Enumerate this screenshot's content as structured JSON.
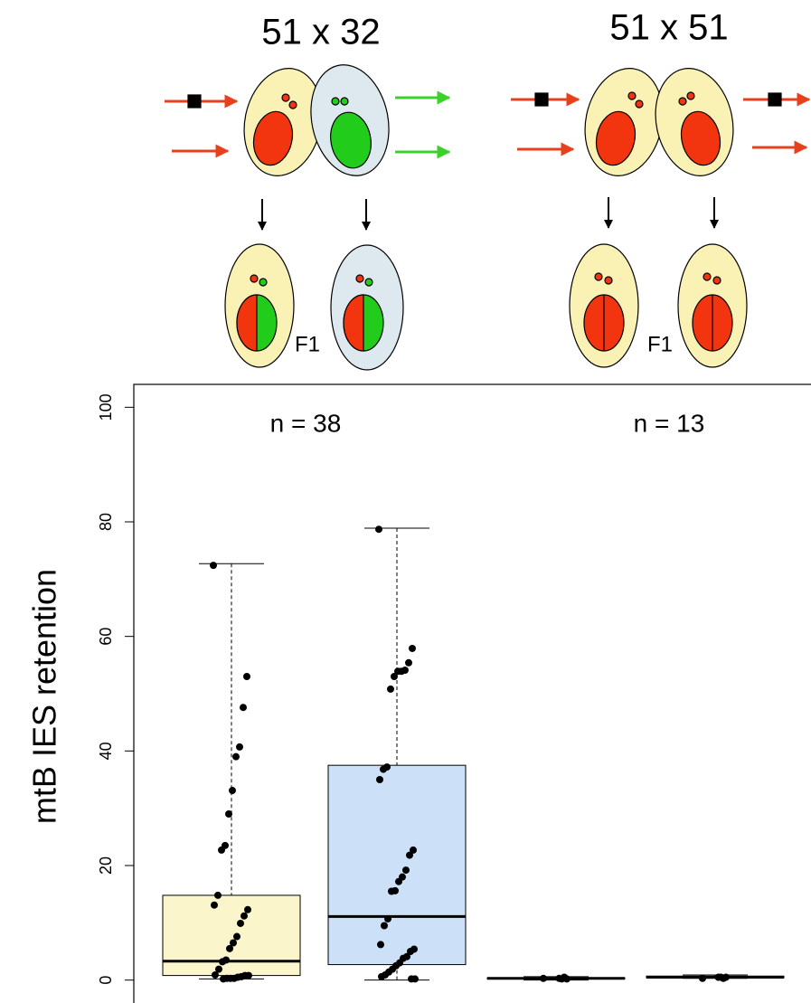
{
  "diagram": {
    "titles": [
      "51 x 32",
      "51 x 51"
    ],
    "f1_labels": [
      "F1",
      "F1"
    ]
  },
  "chart_data": {
    "type": "box",
    "ylabel": "mtB IES retention",
    "annotations": [
      "n = 38",
      "n = 13"
    ],
    "ylim": [
      -4,
      104
    ],
    "yticks": [
      0,
      20,
      40,
      60,
      80,
      100
    ],
    "series": [
      {
        "color": "#fbf5cc",
        "whisker_low": 0.2,
        "q1": 0.8,
        "median": 3.3,
        "q3": 14.8,
        "whisker_high": 72.7,
        "points": [
          72.4,
          53,
          47.6,
          40.7,
          39,
          33.1,
          29,
          23.5,
          22.7,
          14.8,
          13.1,
          12.3,
          11.2,
          9.9,
          7.6,
          6.5,
          5.5,
          3.5,
          3.2,
          1.9,
          0.9,
          0.8,
          0.8,
          0.6,
          0.5,
          0.3,
          0.3,
          0.3,
          0.2
        ]
      },
      {
        "color": "#cce0f8",
        "whisker_low": 0,
        "q1": 2.7,
        "median": 11.1,
        "q3": 37.5,
        "whisker_high": 78.9,
        "points": [
          78.7,
          57.9,
          55.4,
          54.1,
          53.9,
          53.9,
          53,
          50.8,
          37.2,
          36.8,
          35,
          22.7,
          21.8,
          19.2,
          18,
          17.2,
          15.6,
          15.5,
          10.7,
          9.5,
          6.2,
          5.4,
          5,
          4.1,
          3.8,
          3,
          2.5,
          1.9,
          1.4,
          0.9,
          0.6,
          0.2,
          0.2
        ]
      },
      {
        "color": "#fbf5cc",
        "whisker_low": 0,
        "q1": 0.2,
        "median": 0.3,
        "q3": 0.4,
        "whisker_high": 0.6,
        "points": [
          0.3,
          0.2,
          0.5,
          0.2,
          0.3
        ]
      },
      {
        "color": "#cce0f8",
        "whisker_low": 0.3,
        "q1": 0.4,
        "median": 0.5,
        "q3": 0.7,
        "whisker_high": 0.9,
        "points": [
          0.3,
          0.5,
          0.3,
          0.5,
          0.5
        ]
      }
    ]
  }
}
